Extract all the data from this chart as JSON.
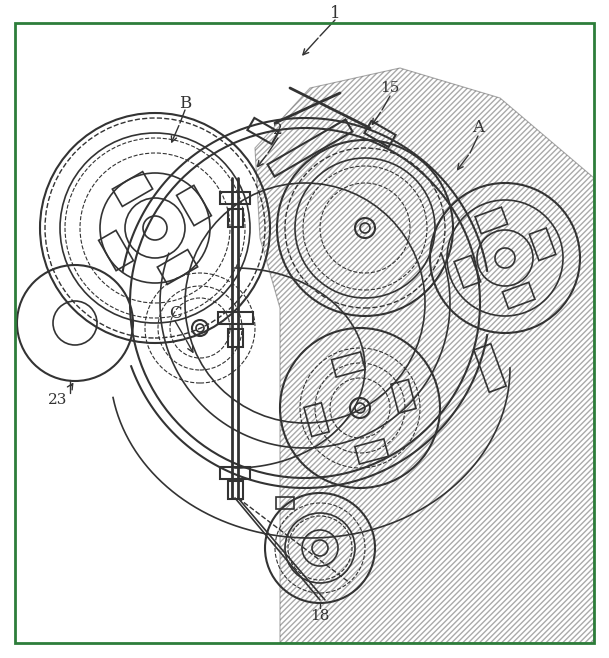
{
  "fig_width": 6.09,
  "fig_height": 6.58,
  "dpi": 100,
  "border_color": "#2d7d3a",
  "line_color": "#333333",
  "bg_color": "#ffffff",
  "hatch_color": "#555555",
  "label_1": "1",
  "label_2": "2",
  "label_A": "A",
  "label_B": "B",
  "label_C": "C",
  "label_15": "15",
  "label_18": "18",
  "label_23": "23"
}
